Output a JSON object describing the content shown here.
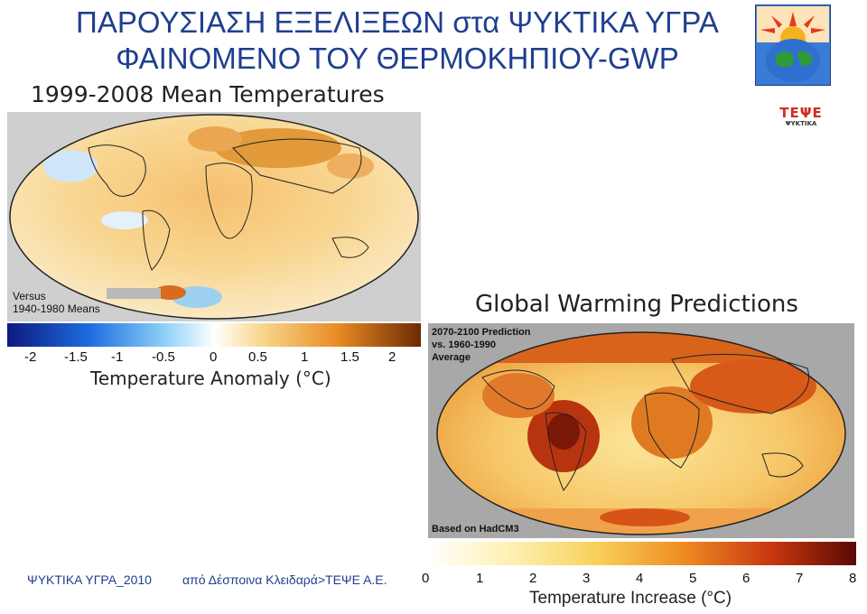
{
  "header": {
    "title_line1": "ΠΑΡΟΥΣΙΑΣΗ ΕΞΕΛΙΞΕΩΝ στα ΨΥΚΤΙΚΑ ΥΓΡΑ",
    "title_line2": "ΦΑΙΝΟΜΕΝΟ ΤΟΥ ΘΕΡΜΟΚΗΠΙΟΥ-GWP"
  },
  "logo": {
    "brand": "ΤΕΨΕ",
    "subtitle": "ΨΥΚΤΙΚΑ"
  },
  "map1": {
    "title": "1999-2008 Mean Temperatures",
    "note_line1": "Versus",
    "note_line2": "1940-1980 Means",
    "scale_ticks": [
      "-2",
      "-1.5",
      "-1",
      "-0.5",
      "0",
      "0.5",
      "1",
      "1.5",
      "2"
    ],
    "scale_label": "Temperature Anomaly (°C)"
  },
  "map2": {
    "title": "Global Warming Predictions",
    "note_line1": "2070-2100 Prediction",
    "note_line2": "vs. 1960-1990",
    "note_line3": "Average",
    "source": "Based on HadCM3",
    "scale_ticks": [
      "0",
      "1",
      "2",
      "3",
      "4",
      "5",
      "6",
      "7",
      "8"
    ],
    "scale_label": "Temperature Increase (°C)"
  },
  "footer": {
    "left": "ΨΥΚΤΙΚΑ ΥΓΡΑ_2010",
    "right": "από Δέσποινα Κλειδαρά>ΤΕΨΕ Α.Ε."
  },
  "colors": {
    "title_blue": "#1f3f8f",
    "logo_red": "#d42a1e"
  }
}
